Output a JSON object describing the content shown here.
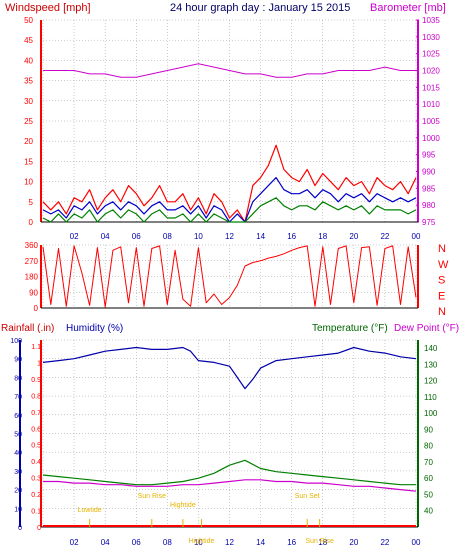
{
  "title": "24 hour graph day : January 15 2015",
  "colors": {
    "background": "#ffffff",
    "axis_red": "#ff0000",
    "axis_blue": "#0000aa",
    "axis_green": "#006600",
    "axis_magenta": "#cc00cc",
    "grid": "#999999",
    "gust": "#ff0000",
    "avg_wind": "#0000cc",
    "wind_min": "#008000",
    "barometer": "#cc00cc",
    "direction": "#ff0000",
    "humidity": "#0000aa",
    "temperature": "#008000",
    "dew_point": "#cc00cc",
    "rainfall": "#ff0000",
    "tide_label": "#e6b400"
  },
  "chart_data": [
    {
      "type": "line",
      "panel": "wind",
      "title": "24 hour graph day : January 15 2015",
      "left_axis_label": "Windspeed [mph]",
      "right_axis_label": "Barometer [mb]",
      "left_ticks": [
        "0",
        "5",
        "10",
        "15",
        "20",
        "25",
        "30",
        "35",
        "40",
        "45",
        "50"
      ],
      "right_ticks": [
        "975",
        "980",
        "985",
        "990",
        "995",
        "1000",
        "1005",
        "1010",
        "1015",
        "1020",
        "1025",
        "1030",
        "1035"
      ],
      "x_tick_labels": [
        "02",
        "04",
        "06",
        "08",
        "10",
        "12",
        "14",
        "16",
        "18",
        "20",
        "22",
        "00"
      ],
      "xlim_hours": [
        0,
        24
      ],
      "ylim_left": [
        0,
        50
      ],
      "ylim_right": [
        975,
        1035
      ],
      "grid": true,
      "series": [
        {
          "key": "gust",
          "x_hours": [
            0,
            0.5,
            1,
            1.5,
            2,
            2.5,
            3,
            3.5,
            4,
            4.5,
            5,
            5.5,
            6,
            6.5,
            7,
            7.5,
            8,
            8.5,
            9,
            9.5,
            10,
            10.5,
            11,
            11.5,
            12,
            12.5,
            13,
            13.5,
            14,
            14.5,
            15,
            15.5,
            16,
            16.5,
            17,
            17.5,
            18,
            18.5,
            19,
            19.5,
            20,
            20.5,
            21,
            21.5,
            22,
            22.5,
            23,
            23.5,
            24
          ],
          "values": [
            5,
            3,
            5,
            2,
            6,
            5,
            8,
            3,
            6,
            8,
            5,
            9,
            7,
            4,
            6,
            9,
            5,
            5,
            7,
            3,
            6,
            2,
            7,
            5,
            1,
            3,
            0,
            9,
            11,
            14,
            19,
            13,
            11,
            10,
            13,
            9,
            12,
            10,
            8,
            11,
            9,
            10,
            7,
            11,
            9,
            8,
            10,
            7,
            11
          ]
        },
        {
          "key": "avg_wind",
          "x_hours": [
            0,
            0.5,
            1,
            1.5,
            2,
            2.5,
            3,
            3.5,
            4,
            4.5,
            5,
            5.5,
            6,
            6.5,
            7,
            7.5,
            8,
            8.5,
            9,
            9.5,
            10,
            10.5,
            11,
            11.5,
            12,
            12.5,
            13,
            13.5,
            14,
            14.5,
            15,
            15.5,
            16,
            16.5,
            17,
            17.5,
            18,
            18.5,
            19,
            19.5,
            20,
            20.5,
            21,
            21.5,
            22,
            22.5,
            23,
            23.5,
            24
          ],
          "values": [
            3,
            2,
            3,
            1,
            4,
            3,
            5,
            2,
            4,
            5,
            3,
            5,
            4,
            2,
            4,
            5,
            3,
            3,
            4,
            2,
            4,
            1,
            4,
            3,
            0,
            2,
            0,
            5,
            7,
            9,
            11,
            8,
            7,
            7,
            8,
            6,
            8,
            7,
            5,
            7,
            6,
            7,
            5,
            7,
            6,
            5,
            6,
            5,
            6
          ]
        },
        {
          "key": "wind_min",
          "x_hours": [
            0,
            0.5,
            1,
            1.5,
            2,
            2.5,
            3,
            3.5,
            4,
            4.5,
            5,
            5.5,
            6,
            6.5,
            7,
            7.5,
            8,
            8.5,
            9,
            9.5,
            10,
            10.5,
            11,
            11.5,
            12,
            12.5,
            13,
            13.5,
            14,
            14.5,
            15,
            15.5,
            16,
            16.5,
            17,
            17.5,
            18,
            18.5,
            19,
            19.5,
            20,
            20.5,
            21,
            21.5,
            22,
            22.5,
            23,
            23.5,
            24
          ],
          "values": [
            1,
            0,
            2,
            0,
            2,
            1,
            3,
            0,
            2,
            3,
            1,
            3,
            2,
            0,
            2,
            3,
            1,
            1,
            2,
            0,
            2,
            0,
            2,
            1,
            0,
            0,
            0,
            2,
            4,
            5,
            6,
            4,
            3,
            4,
            4,
            3,
            5,
            4,
            3,
            4,
            3,
            4,
            2,
            4,
            3,
            3,
            3,
            2,
            3
          ]
        },
        {
          "key": "barometer",
          "axis": "right",
          "x_hours": [
            0,
            1,
            2,
            3,
            4,
            5,
            6,
            7,
            8,
            9,
            10,
            11,
            12,
            13,
            14,
            15,
            16,
            17,
            18,
            19,
            20,
            21,
            22,
            23,
            24
          ],
          "values": [
            1020,
            1020,
            1020,
            1019,
            1019,
            1018,
            1018,
            1019,
            1020,
            1021,
            1022,
            1021,
            1020,
            1019,
            1019,
            1018,
            1018,
            1019,
            1019,
            1020,
            1020,
            1020,
            1021,
            1020,
            1020
          ]
        }
      ]
    },
    {
      "type": "line",
      "panel": "direction",
      "left_ticks": [
        "0",
        "90",
        "180",
        "270",
        "360"
      ],
      "right_labels": [
        "N",
        "W",
        "S",
        "E",
        "N"
      ],
      "xlim_hours": [
        0,
        24
      ],
      "ylim": [
        0,
        360
      ],
      "grid": true,
      "series": [
        {
          "key": "direction",
          "x_hours": [
            0,
            0.5,
            1,
            1.5,
            2,
            2.5,
            3,
            3.5,
            4,
            4.5,
            5,
            5.5,
            6,
            6.5,
            7,
            7.5,
            8,
            8.5,
            9,
            9.5,
            10,
            10.5,
            11,
            11.5,
            12,
            12.5,
            13,
            13.5,
            14,
            14.5,
            15,
            15.5,
            16,
            16.5,
            17,
            17.5,
            18,
            18.5,
            19,
            19.5,
            20,
            20.5,
            21,
            21.5,
            22,
            22.5,
            23,
            23.5,
            24
          ],
          "values": [
            350,
            20,
            340,
            10,
            355,
            200,
            15,
            345,
            5,
            330,
            350,
            30,
            345,
            10,
            340,
            355,
            20,
            330,
            50,
            10,
            345,
            30,
            80,
            20,
            60,
            130,
            240,
            260,
            270,
            285,
            295,
            310,
            330,
            345,
            355,
            10,
            350,
            20,
            340,
            355,
            30,
            345,
            350,
            15,
            340,
            355,
            20,
            350,
            60
          ]
        }
      ]
    },
    {
      "type": "line",
      "panel": "humidity-temperature",
      "label_rainfall": "Rainfall (.in)",
      "label_humidity": "Humidity (%)",
      "label_temperature": "Temperature (°F)",
      "label_dewpoint": "Dew Point (°F)",
      "left_outer_ticks": [
        "0",
        "0.1",
        "0.2",
        "0.3",
        "0.4",
        "0.5",
        "0.6",
        "0.7",
        "0.8",
        "0.9",
        "1",
        "1.1"
      ],
      "left_inner_ticks": [
        "0",
        "10",
        "20",
        "30",
        "40",
        "50",
        "60",
        "70",
        "80",
        "90",
        "100"
      ],
      "right_ticks": [
        "40",
        "50",
        "60",
        "70",
        "80",
        "90",
        "100",
        "110",
        "120",
        "130",
        "140"
      ],
      "x_tick_labels": [
        "02",
        "04",
        "06",
        "08",
        "10",
        "12",
        "14",
        "16",
        "18",
        "20",
        "22",
        "00"
      ],
      "xlim_hours": [
        0,
        24
      ],
      "ylim_humidity": [
        0,
        100
      ],
      "ylim_temperature": [
        30,
        145
      ],
      "grid": true,
      "tide_labels": [
        "Lowtide",
        "Sun Rise",
        "Hightide",
        "Hightide",
        "Sun Set",
        "Sun Rise"
      ],
      "series": [
        {
          "key": "humidity",
          "x_hours": [
            0,
            1,
            2,
            3,
            4,
            5,
            6,
            7,
            8,
            9,
            9.5,
            10,
            11,
            12,
            12.5,
            13,
            13.5,
            14,
            15,
            16,
            17,
            18,
            19,
            20,
            21,
            22,
            23,
            24
          ],
          "values": [
            88,
            89,
            90,
            92,
            94,
            95,
            96,
            95,
            95,
            96,
            94,
            89,
            88,
            86,
            80,
            74,
            79,
            85,
            89,
            90,
            91,
            92,
            93,
            96,
            94,
            93,
            91,
            90
          ]
        },
        {
          "key": "temperature",
          "axis": "right",
          "x_hours": [
            0,
            1,
            2,
            3,
            4,
            5,
            6,
            7,
            8,
            9,
            10,
            11,
            12,
            13,
            14,
            15,
            16,
            17,
            18,
            19,
            20,
            21,
            22,
            23,
            24
          ],
          "values": [
            62,
            61,
            60,
            59,
            58,
            57,
            56,
            56,
            57,
            58,
            60,
            63,
            68,
            71,
            66,
            64,
            63,
            62,
            61,
            60,
            59,
            58,
            57,
            56,
            56
          ]
        },
        {
          "key": "dew_point",
          "axis": "right",
          "x_hours": [
            0,
            1,
            2,
            3,
            4,
            5,
            6,
            7,
            8,
            9,
            10,
            11,
            12,
            13,
            14,
            15,
            16,
            17,
            18,
            19,
            20,
            21,
            22,
            23,
            24
          ],
          "values": [
            58,
            58,
            57,
            57,
            56,
            56,
            55,
            55,
            55,
            56,
            56,
            57,
            58,
            59,
            59,
            58,
            58,
            57,
            57,
            56,
            55,
            55,
            54,
            53,
            52
          ]
        },
        {
          "key": "rainfall",
          "axis": "left-outer",
          "x_hours": [
            0,
            24
          ],
          "values": [
            0,
            0
          ]
        }
      ]
    }
  ]
}
